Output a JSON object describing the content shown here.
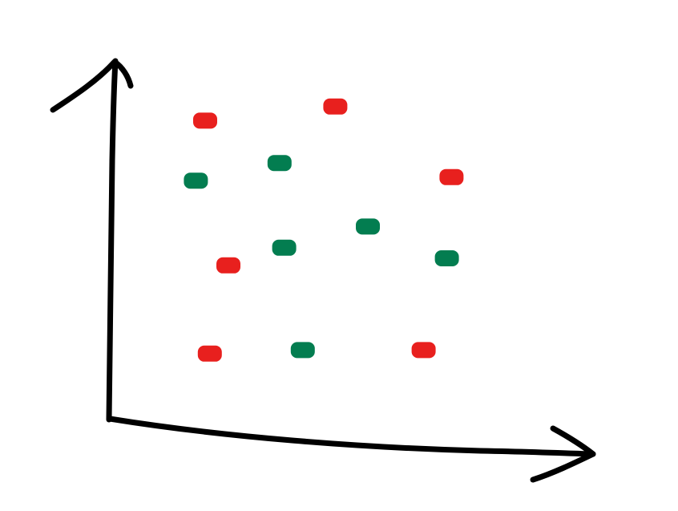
{
  "chart_data": {
    "type": "scatter",
    "title": "",
    "xlabel": "",
    "ylabel": "",
    "grid": false,
    "legend": "none",
    "xlim": [
      0,
      10
    ],
    "ylim": [
      0,
      10
    ],
    "series": [
      {
        "color": "#e8201e",
        "points": [
          {
            "x": 2.0,
            "y": 8.4
          },
          {
            "x": 4.8,
            "y": 8.8
          },
          {
            "x": 7.3,
            "y": 6.8
          },
          {
            "x": 2.5,
            "y": 4.3
          },
          {
            "x": 2.1,
            "y": 1.8
          },
          {
            "x": 6.7,
            "y": 1.9
          }
        ]
      },
      {
        "color": "#037d50",
        "points": [
          {
            "x": 1.8,
            "y": 6.7
          },
          {
            "x": 3.6,
            "y": 7.2
          },
          {
            "x": 5.5,
            "y": 5.4
          },
          {
            "x": 3.7,
            "y": 4.8
          },
          {
            "x": 7.2,
            "y": 4.5
          },
          {
            "x": 4.1,
            "y": 1.9
          }
        ]
      }
    ]
  }
}
